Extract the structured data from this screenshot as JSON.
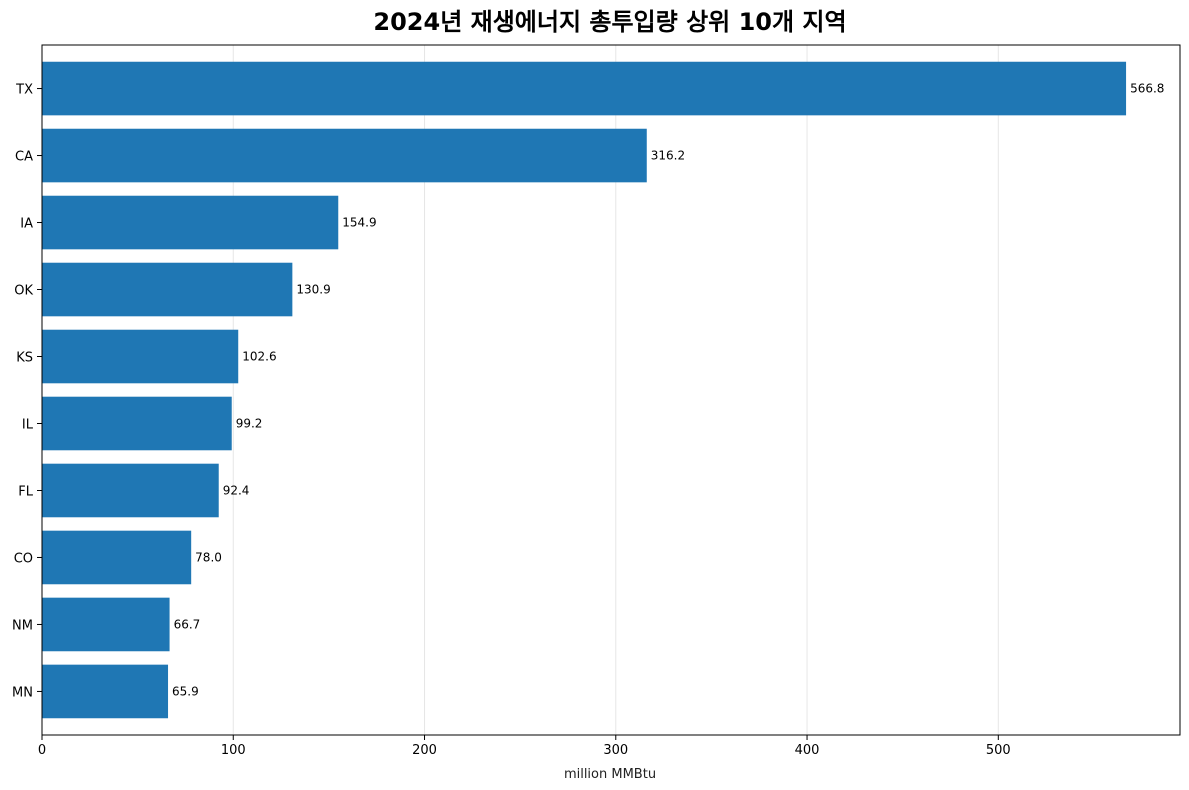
{
  "chart_data": {
    "type": "bar",
    "orientation": "horizontal",
    "title": "2024년 재생에너지 총투입량 상위 10개 지역",
    "xlabel": "million MMBtu",
    "ylabel": "",
    "categories": [
      "TX",
      "CA",
      "IA",
      "OK",
      "KS",
      "IL",
      "FL",
      "CO",
      "NM",
      "MN"
    ],
    "values": [
      566.8,
      316.2,
      154.9,
      130.9,
      102.6,
      99.2,
      92.4,
      78.0,
      66.7,
      65.9
    ],
    "value_labels": [
      "566.8",
      "316.2",
      "154.9",
      "130.9",
      "102.6",
      "99.2",
      "92.4",
      "78.0",
      "66.7",
      "65.9"
    ],
    "xlim": [
      0,
      595
    ],
    "xticks": [
      0,
      100,
      200,
      300,
      400,
      500
    ],
    "xtick_labels": [
      "0",
      "100",
      "200",
      "300",
      "400",
      "500"
    ],
    "grid": "x",
    "legend": "none",
    "bar_color": "#1f77b4"
  }
}
